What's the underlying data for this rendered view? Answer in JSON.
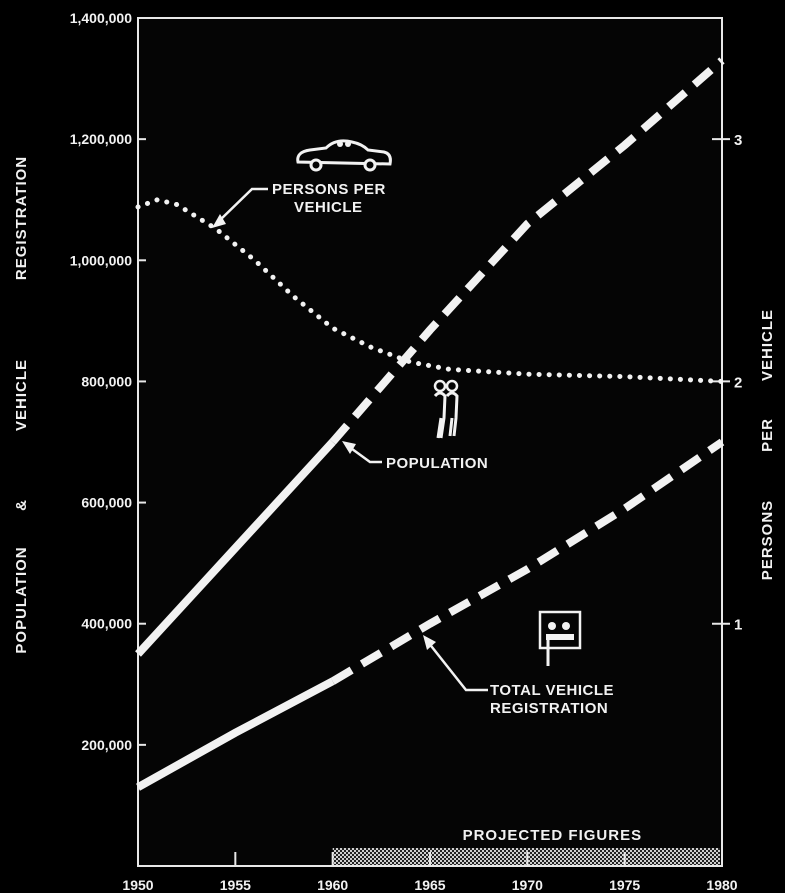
{
  "chart_data": {
    "type": "line",
    "title": "",
    "y_axis_title_words": [
      "POPULATION",
      "&",
      "VEHICLE",
      "REGISTRATION"
    ],
    "y2_axis_title_words": [
      "PERSONS",
      "PER",
      "VEHICLE"
    ],
    "x_ticks": [
      "1950",
      "1955",
      "1960",
      "1965",
      "1970",
      "1975",
      "1980"
    ],
    "y_ticks": [
      "200,000",
      "400,000",
      "600,000",
      "800,000",
      "1,000,000",
      "1,200,000",
      "1,400,000"
    ],
    "y2_ticks": [
      "1",
      "2",
      "3"
    ],
    "xlim": [
      1950,
      1980
    ],
    "ylim": [
      0,
      1400000
    ],
    "y2lim": [
      0,
      3.5
    ],
    "projected_from": 1960,
    "projected_label": "PROJECTED FIGURES",
    "series": [
      {
        "name": "POPULATION",
        "axis": "left",
        "color": "#f2f2f2",
        "x": [
          1950,
          1955,
          1960,
          1965,
          1970,
          1975,
          1980
        ],
        "y": [
          350000,
          525000,
          700000,
          885000,
          1060000,
          1190000,
          1330000
        ]
      },
      {
        "name": "TOTAL VEHICLE REGISTRATION",
        "axis": "left",
        "color": "#f2f2f2",
        "x": [
          1950,
          1955,
          1960,
          1965,
          1970,
          1975,
          1980
        ],
        "y": [
          130000,
          220000,
          305000,
          400000,
          490000,
          590000,
          700000
        ]
      },
      {
        "name": "PERSONS PER VEHICLE",
        "axis": "right",
        "color": "#f2f2f2",
        "x": [
          1950,
          1951,
          1952,
          1954,
          1956,
          1958,
          1960,
          1962,
          1964,
          1966,
          1968,
          1970,
          1975,
          1980
        ],
        "y": [
          2.72,
          2.75,
          2.73,
          2.63,
          2.5,
          2.35,
          2.22,
          2.14,
          2.08,
          2.05,
          2.04,
          2.03,
          2.02,
          2.0
        ]
      }
    ],
    "annotations": {
      "persons_per_vehicle": [
        "PERSONS PER",
        "VEHICLE"
      ],
      "population": [
        "POPULATION"
      ],
      "vehicle_registration": [
        "TOTAL VEHICLE",
        "REGISTRATION"
      ]
    },
    "grid": false,
    "legend": "none"
  }
}
